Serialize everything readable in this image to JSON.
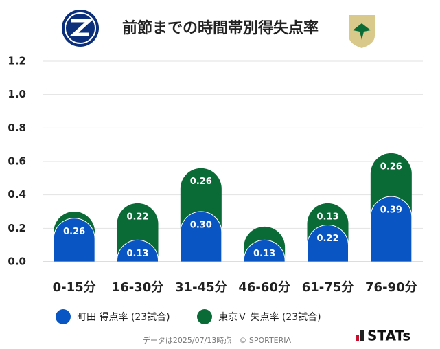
{
  "chart_data": {
    "type": "stacked-bar",
    "title": "前節までの時間帯別得失点率",
    "categories": [
      "0-15分",
      "16-30分",
      "31-45分",
      "46-60分",
      "61-75分",
      "76-90分"
    ],
    "series": [
      {
        "name": "町田 得点率 (23試合)",
        "color": "#0a55c4",
        "values": [
          0.26,
          0.13,
          0.3,
          0.13,
          0.22,
          0.39
        ],
        "value_labels": [
          "0.26",
          "0.13",
          "0.30",
          "0.13",
          "0.22",
          "0.39"
        ]
      },
      {
        "name": "東京Ｖ 失点率 (23試合)",
        "color": "#0b6b36",
        "values": [
          0.04,
          0.22,
          0.26,
          0.08,
          0.13,
          0.26
        ],
        "value_labels": [
          null,
          "0.22",
          "0.26",
          null,
          "0.13",
          "0.26"
        ]
      }
    ],
    "ylim": [
      0,
      1.2
    ],
    "yticks": [
      {
        "value": 0,
        "label": "0.0"
      },
      {
        "value": 0.2,
        "label": "0.2"
      },
      {
        "value": 0.4,
        "label": "0.4"
      },
      {
        "value": 0.6,
        "label": "0.6"
      },
      {
        "value": 0.8,
        "label": "0.8"
      },
      {
        "value": 1,
        "label": "1.0"
      },
      {
        "value": 1.2,
        "label": "1.2"
      }
    ],
    "grid": true,
    "footer": "データは2025/07/13時点　© SPORTERIA",
    "brand": "STATs"
  }
}
